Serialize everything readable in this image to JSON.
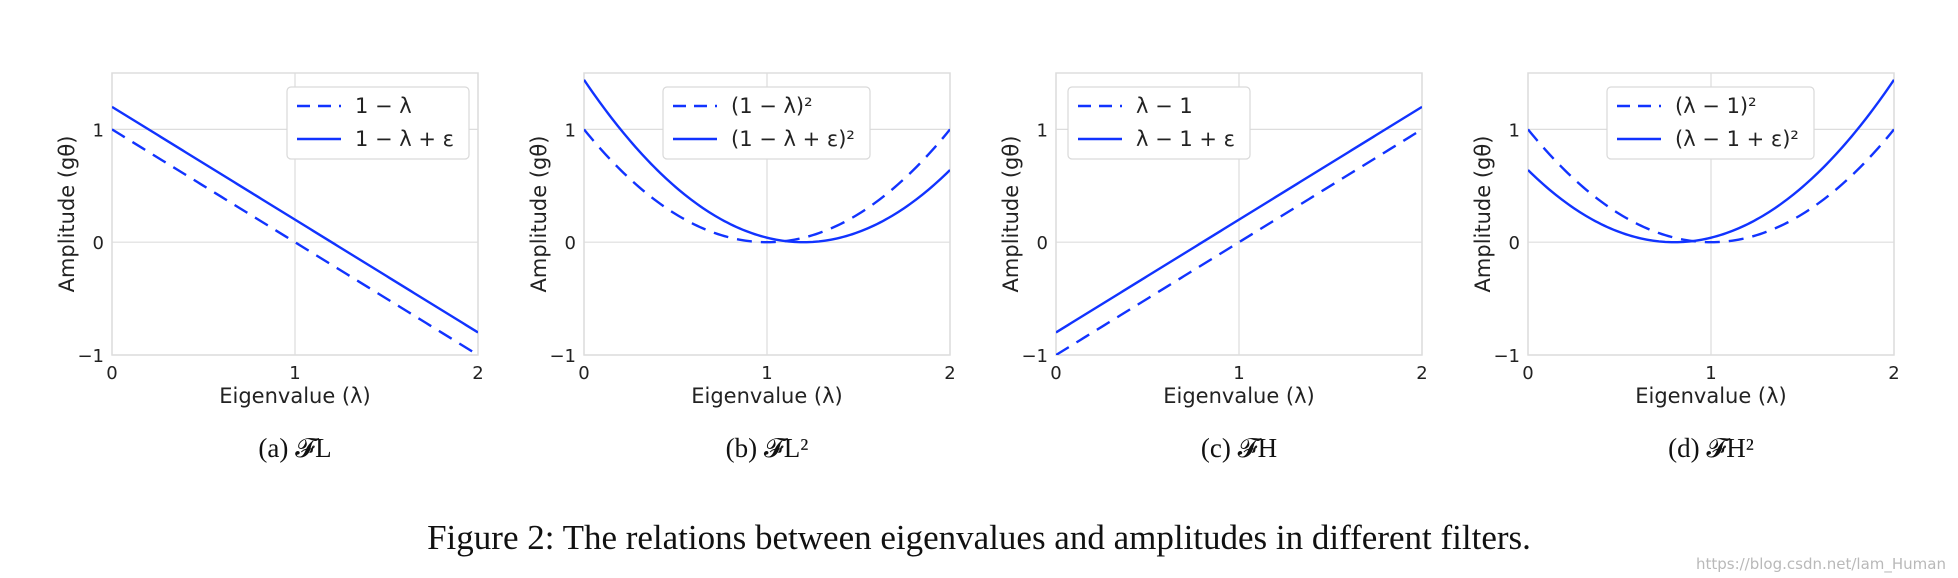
{
  "figure_caption": "Figure 2: The relations between eigenvalues and amplitudes in different filters.",
  "watermark": "https://blog.csdn.net/lam_Human",
  "style": {
    "line_color": "#1133ff",
    "grid_color": "#dddddd"
  },
  "chart_data": [
    {
      "type": "line",
      "subcaption": "(a) 𝓕L",
      "xlabel": "Eigenvalue (λ)",
      "ylabel": "Amplitude (gθ)",
      "xlim": [
        0,
        2
      ],
      "ylim": [
        -1,
        1.5
      ],
      "xticks": [
        "0",
        "1",
        "2"
      ],
      "yticks": [
        "−1",
        "0",
        "1"
      ],
      "grid": true,
      "legend_position": "top-right",
      "x": [
        0,
        0.25,
        0.5,
        0.75,
        1,
        1.25,
        1.5,
        1.75,
        2
      ],
      "series": [
        {
          "name": "1 − λ",
          "style": "dashed",
          "values": [
            1,
            0.75,
            0.5,
            0.25,
            0,
            -0.25,
            -0.5,
            -0.75,
            -1
          ]
        },
        {
          "name": "1 − λ + ε",
          "style": "solid",
          "values": [
            1.2,
            0.95,
            0.7,
            0.45,
            0.2,
            -0.05,
            -0.3,
            -0.55,
            -0.8
          ]
        }
      ]
    },
    {
      "type": "line",
      "subcaption": "(b) 𝓕L²",
      "xlabel": "Eigenvalue (λ)",
      "ylabel": "Amplitude (gθ)",
      "xlim": [
        0,
        2
      ],
      "ylim": [
        -1,
        1.5
      ],
      "xticks": [
        "0",
        "1",
        "2"
      ],
      "yticks": [
        "−1",
        "0",
        "1"
      ],
      "grid": true,
      "legend_position": "top-right",
      "x": [
        0,
        0.25,
        0.5,
        0.75,
        1,
        1.25,
        1.5,
        1.75,
        2
      ],
      "series": [
        {
          "name": "(1 − λ)²",
          "style": "dashed",
          "values": [
            1,
            0.5625,
            0.25,
            0.0625,
            0,
            0.0625,
            0.25,
            0.5625,
            1
          ]
        },
        {
          "name": "(1 − λ + ε)²",
          "style": "solid",
          "values": [
            1.44,
            0.9025,
            0.49,
            0.2025,
            0.04,
            0.0025,
            0.09,
            0.3025,
            0.64
          ]
        }
      ]
    },
    {
      "type": "line",
      "subcaption": "(c) 𝓕H",
      "xlabel": "Eigenvalue (λ)",
      "ylabel": "Amplitude (gθ)",
      "xlim": [
        0,
        2
      ],
      "ylim": [
        -1,
        1.5
      ],
      "xticks": [
        "0",
        "1",
        "2"
      ],
      "yticks": [
        "−1",
        "0",
        "1"
      ],
      "grid": true,
      "legend_position": "top-left",
      "x": [
        0,
        0.25,
        0.5,
        0.75,
        1,
        1.25,
        1.5,
        1.75,
        2
      ],
      "series": [
        {
          "name": "λ − 1",
          "style": "dashed",
          "values": [
            -1,
            -0.75,
            -0.5,
            -0.25,
            0,
            0.25,
            0.5,
            0.75,
            1
          ]
        },
        {
          "name": "λ − 1 + ε",
          "style": "solid",
          "values": [
            -0.8,
            -0.55,
            -0.3,
            -0.05,
            0.2,
            0.45,
            0.7,
            0.95,
            1.2
          ]
        }
      ]
    },
    {
      "type": "line",
      "subcaption": "(d) 𝓕H²",
      "xlabel": "Eigenvalue (λ)",
      "ylabel": "Amplitude (gθ)",
      "xlim": [
        0,
        2
      ],
      "ylim": [
        -1,
        1.5
      ],
      "xticks": [
        "0",
        "1",
        "2"
      ],
      "yticks": [
        "−1",
        "0",
        "1"
      ],
      "grid": true,
      "legend_position": "top-center",
      "x": [
        0,
        0.25,
        0.5,
        0.75,
        1,
        1.25,
        1.5,
        1.75,
        2
      ],
      "series": [
        {
          "name": "(λ − 1)²",
          "style": "dashed",
          "values": [
            1,
            0.5625,
            0.25,
            0.0625,
            0,
            0.0625,
            0.25,
            0.5625,
            1
          ]
        },
        {
          "name": "(λ − 1 + ε)²",
          "style": "solid",
          "values": [
            0.64,
            0.3025,
            0.09,
            0.0025,
            0.04,
            0.2025,
            0.49,
            0.9025,
            1.44
          ]
        }
      ]
    }
  ]
}
